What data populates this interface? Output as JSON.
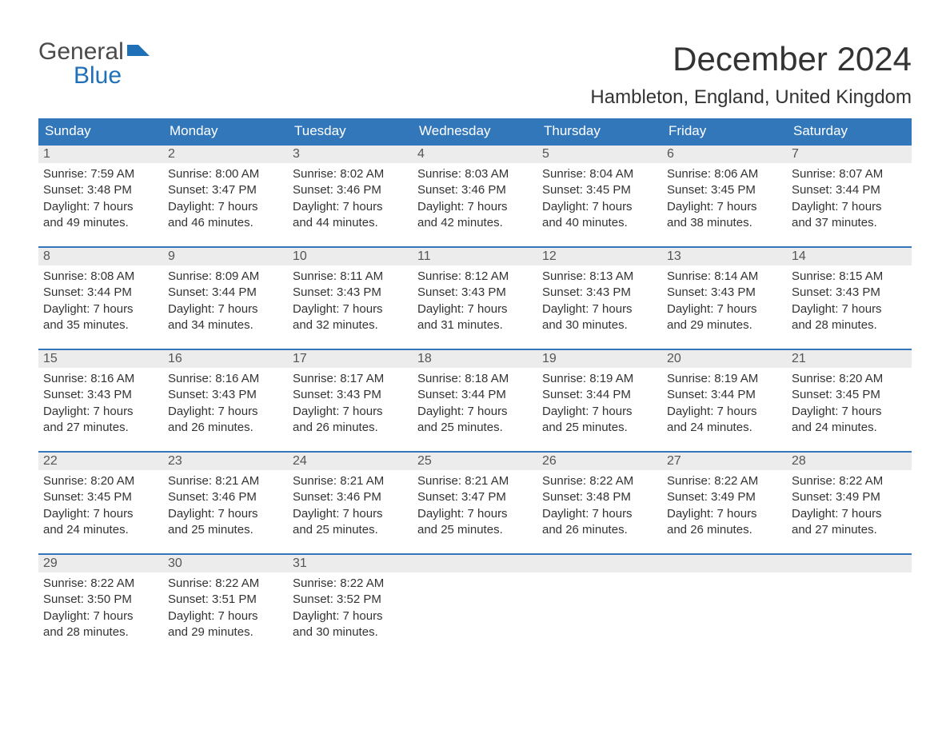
{
  "logo": {
    "line1": "General",
    "line2": "Blue",
    "flag_color": "#2070b8"
  },
  "title": "December 2024",
  "location": "Hambleton, England, United Kingdom",
  "colors": {
    "header_bg": "#3377bb",
    "header_text": "#ffffff",
    "daynum_bg": "#ececec",
    "row_border": "#3377bb",
    "text": "#333333",
    "logo_gray": "#4a4a4a",
    "logo_blue": "#2070b8",
    "background": "#ffffff"
  },
  "day_headers": [
    "Sunday",
    "Monday",
    "Tuesday",
    "Wednesday",
    "Thursday",
    "Friday",
    "Saturday"
  ],
  "weeks": [
    [
      {
        "n": "1",
        "sr": "7:59 AM",
        "ss": "3:48 PM",
        "dh": "7",
        "dm": "49"
      },
      {
        "n": "2",
        "sr": "8:00 AM",
        "ss": "3:47 PM",
        "dh": "7",
        "dm": "46"
      },
      {
        "n": "3",
        "sr": "8:02 AM",
        "ss": "3:46 PM",
        "dh": "7",
        "dm": "44"
      },
      {
        "n": "4",
        "sr": "8:03 AM",
        "ss": "3:46 PM",
        "dh": "7",
        "dm": "42"
      },
      {
        "n": "5",
        "sr": "8:04 AM",
        "ss": "3:45 PM",
        "dh": "7",
        "dm": "40"
      },
      {
        "n": "6",
        "sr": "8:06 AM",
        "ss": "3:45 PM",
        "dh": "7",
        "dm": "38"
      },
      {
        "n": "7",
        "sr": "8:07 AM",
        "ss": "3:44 PM",
        "dh": "7",
        "dm": "37"
      }
    ],
    [
      {
        "n": "8",
        "sr": "8:08 AM",
        "ss": "3:44 PM",
        "dh": "7",
        "dm": "35"
      },
      {
        "n": "9",
        "sr": "8:09 AM",
        "ss": "3:44 PM",
        "dh": "7",
        "dm": "34"
      },
      {
        "n": "10",
        "sr": "8:11 AM",
        "ss": "3:43 PM",
        "dh": "7",
        "dm": "32"
      },
      {
        "n": "11",
        "sr": "8:12 AM",
        "ss": "3:43 PM",
        "dh": "7",
        "dm": "31"
      },
      {
        "n": "12",
        "sr": "8:13 AM",
        "ss": "3:43 PM",
        "dh": "7",
        "dm": "30"
      },
      {
        "n": "13",
        "sr": "8:14 AM",
        "ss": "3:43 PM",
        "dh": "7",
        "dm": "29"
      },
      {
        "n": "14",
        "sr": "8:15 AM",
        "ss": "3:43 PM",
        "dh": "7",
        "dm": "28"
      }
    ],
    [
      {
        "n": "15",
        "sr": "8:16 AM",
        "ss": "3:43 PM",
        "dh": "7",
        "dm": "27"
      },
      {
        "n": "16",
        "sr": "8:16 AM",
        "ss": "3:43 PM",
        "dh": "7",
        "dm": "26"
      },
      {
        "n": "17",
        "sr": "8:17 AM",
        "ss": "3:43 PM",
        "dh": "7",
        "dm": "26"
      },
      {
        "n": "18",
        "sr": "8:18 AM",
        "ss": "3:44 PM",
        "dh": "7",
        "dm": "25"
      },
      {
        "n": "19",
        "sr": "8:19 AM",
        "ss": "3:44 PM",
        "dh": "7",
        "dm": "25"
      },
      {
        "n": "20",
        "sr": "8:19 AM",
        "ss": "3:44 PM",
        "dh": "7",
        "dm": "24"
      },
      {
        "n": "21",
        "sr": "8:20 AM",
        "ss": "3:45 PM",
        "dh": "7",
        "dm": "24"
      }
    ],
    [
      {
        "n": "22",
        "sr": "8:20 AM",
        "ss": "3:45 PM",
        "dh": "7",
        "dm": "24"
      },
      {
        "n": "23",
        "sr": "8:21 AM",
        "ss": "3:46 PM",
        "dh": "7",
        "dm": "25"
      },
      {
        "n": "24",
        "sr": "8:21 AM",
        "ss": "3:46 PM",
        "dh": "7",
        "dm": "25"
      },
      {
        "n": "25",
        "sr": "8:21 AM",
        "ss": "3:47 PM",
        "dh": "7",
        "dm": "25"
      },
      {
        "n": "26",
        "sr": "8:22 AM",
        "ss": "3:48 PM",
        "dh": "7",
        "dm": "26"
      },
      {
        "n": "27",
        "sr": "8:22 AM",
        "ss": "3:49 PM",
        "dh": "7",
        "dm": "26"
      },
      {
        "n": "28",
        "sr": "8:22 AM",
        "ss": "3:49 PM",
        "dh": "7",
        "dm": "27"
      }
    ],
    [
      {
        "n": "29",
        "sr": "8:22 AM",
        "ss": "3:50 PM",
        "dh": "7",
        "dm": "28"
      },
      {
        "n": "30",
        "sr": "8:22 AM",
        "ss": "3:51 PM",
        "dh": "7",
        "dm": "29"
      },
      {
        "n": "31",
        "sr": "8:22 AM",
        "ss": "3:52 PM",
        "dh": "7",
        "dm": "30"
      },
      null,
      null,
      null,
      null
    ]
  ],
  "labels": {
    "sunrise": "Sunrise: ",
    "sunset": "Sunset: ",
    "daylight": "Daylight: ",
    "hours_sep": " hours",
    "minutes_prefix": "and ",
    "minutes_suffix": " minutes."
  }
}
